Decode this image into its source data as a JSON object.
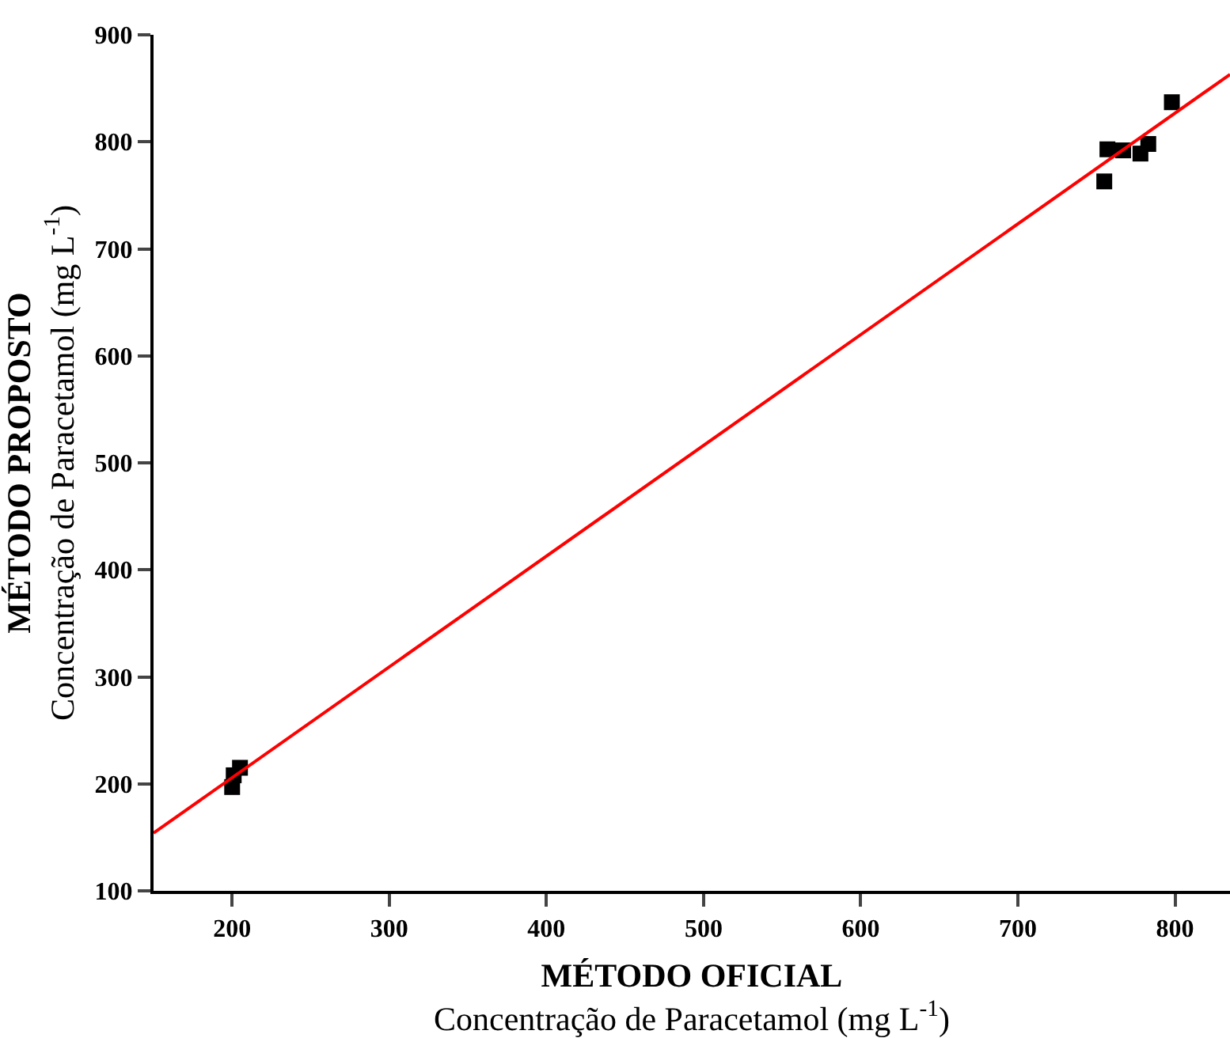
{
  "chart_data": {
    "type": "scatter",
    "xlabel": "MÉTODO OFICIAL\nConcentração de Paracetamol (mg L$^{-1}$)",
    "ylabel": "MÉTODO PROPOSTO\nConcentração de Paracetamol (mg L$^{-1}$)",
    "xlim": [
      150,
      835
    ],
    "xticks": [
      200,
      300,
      400,
      500,
      600,
      700,
      800
    ],
    "ylim": [
      100,
      900
    ],
    "yticks": [
      100,
      200,
      300,
      400,
      500,
      600,
      700,
      800,
      900
    ],
    "marker": "square",
    "series": [
      {
        "color": "#000000",
        "x": [
          200,
          201,
          205,
          755,
          757,
          767,
          778,
          783,
          798
        ],
        "values": [
          197,
          208,
          215,
          763,
          793,
          792,
          789,
          798,
          837
        ]
      },
      {
        "type": "line",
        "color": "#ff0000",
        "x": [
          150,
          835
        ],
        "values": [
          154,
          863
        ],
        "marker": "none",
        "line_style": "solid"
      }
    ]
  }
}
